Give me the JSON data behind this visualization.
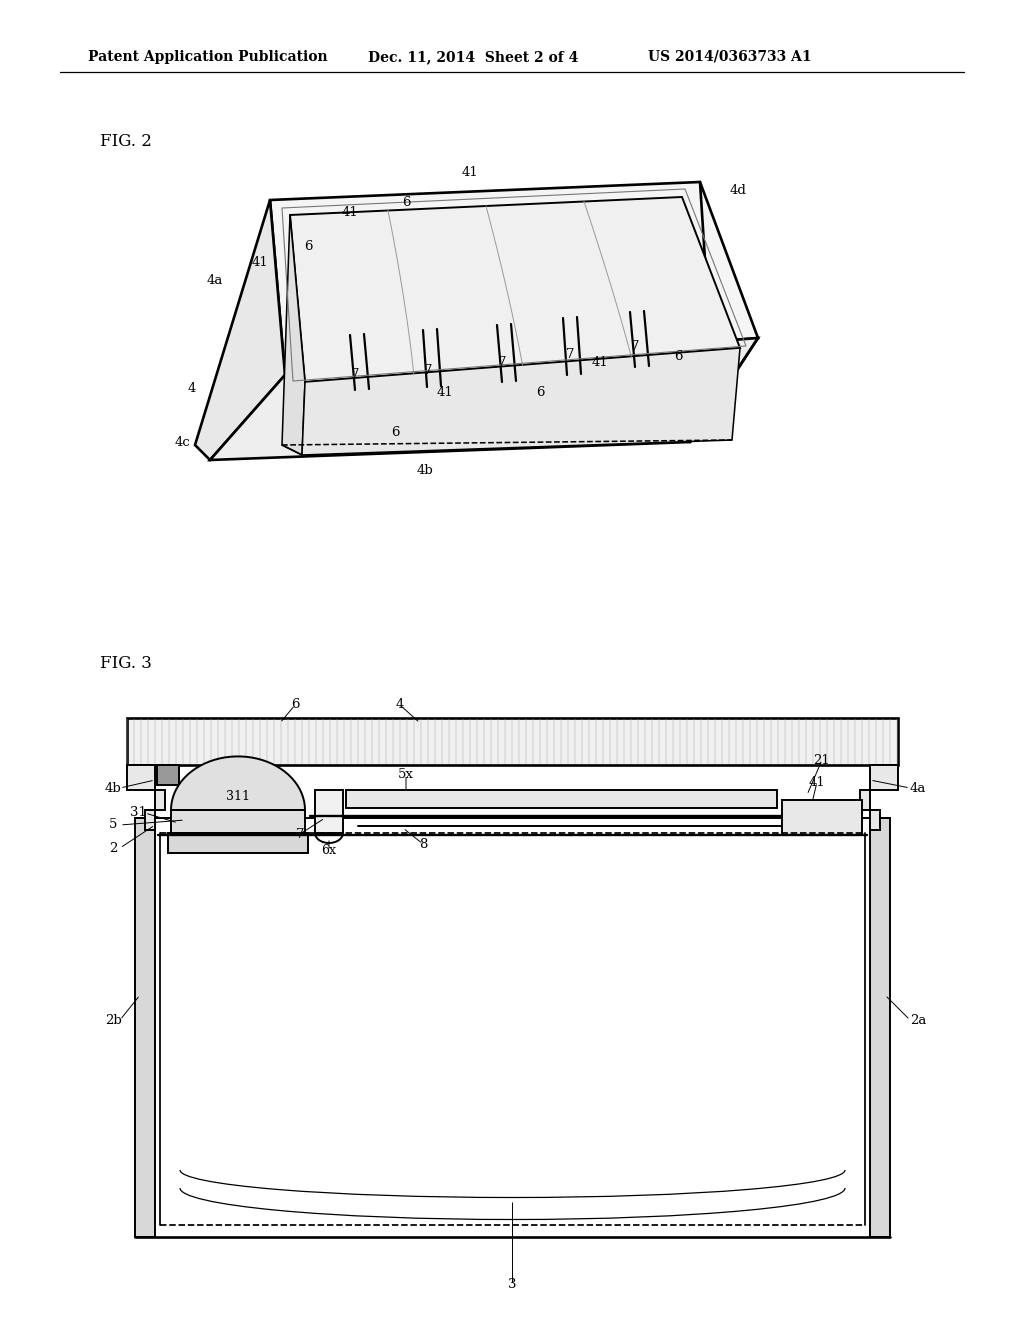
{
  "background_color": "#ffffff",
  "header_text": "Patent Application Publication",
  "header_date": "Dec. 11, 2014  Sheet 2 of 4",
  "header_patent": "US 2014/0363733 A1",
  "fig2_label": "FIG. 2",
  "fig3_label": "FIG. 3",
  "line_color": "#000000",
  "lw": 1.4
}
